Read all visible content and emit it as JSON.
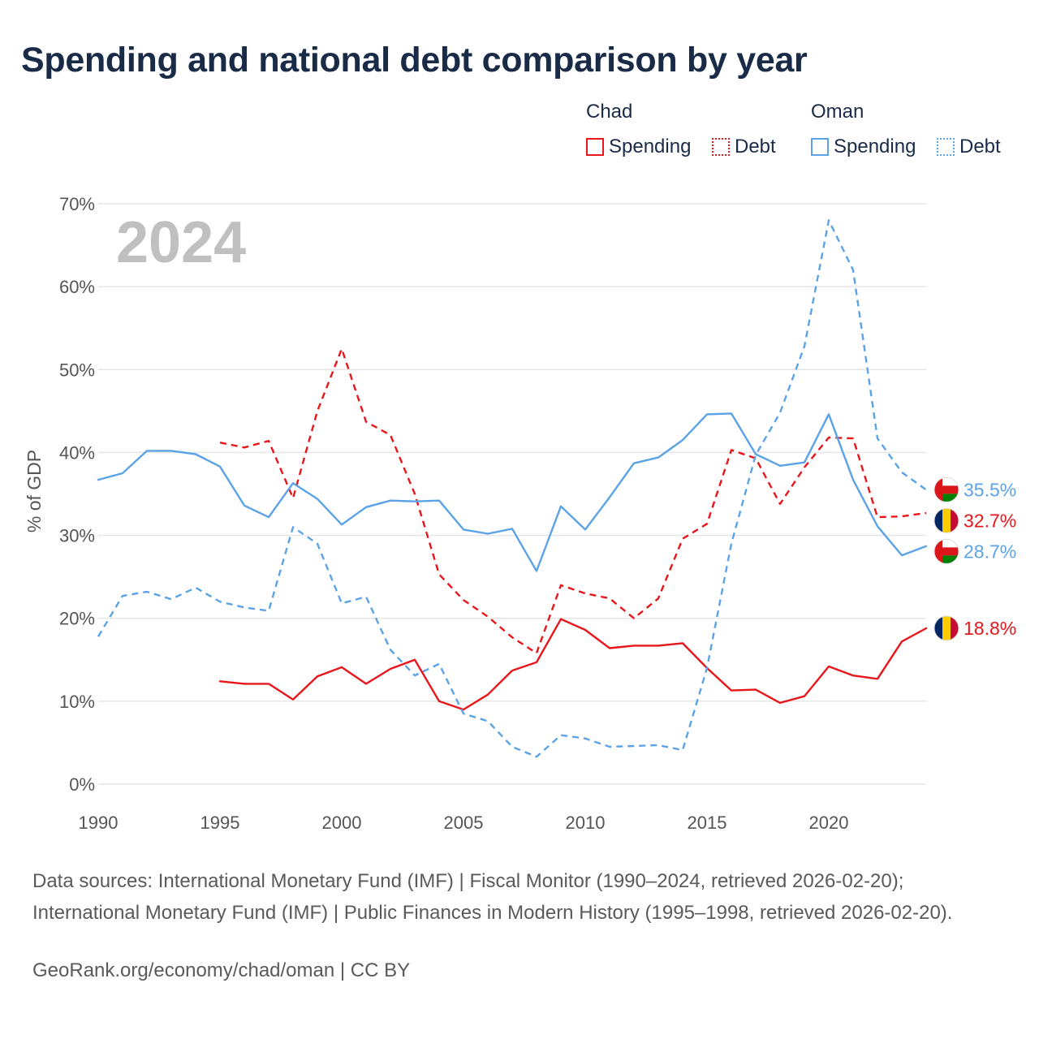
{
  "title": "Spending and national debt comparison by year",
  "legend": {
    "groups": [
      {
        "name": "Chad",
        "items": [
          {
            "label": "Spending"
          },
          {
            "label": "Debt"
          }
        ]
      },
      {
        "name": "Oman",
        "items": [
          {
            "label": "Spending"
          },
          {
            "label": "Debt"
          }
        ]
      }
    ]
  },
  "colors": {
    "chad": "#e8161b",
    "oman": "#5ba3e6",
    "grid": "#e6e6e6",
    "axis_text": "#555555",
    "year_label": "#c0c0c0"
  },
  "sources": {
    "text": "Data sources: International Monetary Fund (IMF) | Fiscal Monitor (1990–2024, retrieved 2026-02-20); International Monetary Fund (IMF) | Public Finances in Modern History (1995–1998, retrieved 2026-02-20).",
    "credit": "GeoRank.org/economy/chad/oman | CC BY"
  },
  "chart_data": {
    "type": "line",
    "year_label": "2024",
    "ylabel": "% of GDP",
    "ylim": [
      0,
      70
    ],
    "yticks": [
      0,
      10,
      20,
      30,
      40,
      50,
      60,
      70
    ],
    "ytick_labels": [
      "0%",
      "10%",
      "20%",
      "30%",
      "40%",
      "50%",
      "60%",
      "70%"
    ],
    "xlim": [
      1990,
      2024
    ],
    "xticks": [
      1990,
      1995,
      2000,
      2005,
      2010,
      2015,
      2020
    ],
    "xtick_labels": [
      "1990",
      "1995",
      "2000",
      "2005",
      "2010",
      "2015",
      "2020"
    ],
    "grid": true,
    "series": [
      {
        "name": "Chad Spending",
        "country": "chad",
        "style": "solid",
        "start_year": 1995,
        "values": [
          12.4,
          12.1,
          12.1,
          10.2,
          13.0,
          14.1,
          12.1,
          13.9,
          15.0,
          10.0,
          9.0,
          10.8,
          13.7,
          14.7,
          19.9,
          18.6,
          16.4,
          16.7,
          16.7,
          17.0,
          14.0,
          11.3,
          11.4,
          9.8,
          10.6,
          14.2,
          13.1,
          12.7,
          17.2,
          18.8
        ],
        "end_label": "18.8%"
      },
      {
        "name": "Chad Debt",
        "country": "chad",
        "style": "dashed",
        "start_year": 1995,
        "values": [
          41.2,
          40.6,
          41.4,
          34.5,
          45.0,
          52.5,
          43.7,
          42.1,
          35.0,
          25.3,
          22.2,
          20.2,
          17.7,
          15.8,
          24.0,
          23.0,
          22.4,
          20.0,
          22.4,
          29.6,
          31.4,
          40.3,
          39.3,
          33.8,
          38.2,
          41.8,
          41.7,
          32.2,
          32.3,
          32.7
        ],
        "end_label": "32.7%"
      },
      {
        "name": "Oman Spending",
        "country": "oman",
        "style": "solid",
        "start_year": 1990,
        "values": [
          36.7,
          37.5,
          40.2,
          40.2,
          39.8,
          38.3,
          33.6,
          32.2,
          36.3,
          34.4,
          31.3,
          33.4,
          34.2,
          34.1,
          34.2,
          30.7,
          30.2,
          30.8,
          25.7,
          33.5,
          30.7,
          34.6,
          38.7,
          39.4,
          41.5,
          44.6,
          44.7,
          39.8,
          38.4,
          38.8,
          44.6,
          36.7,
          31.1,
          27.6,
          28.7
        ],
        "end_label": "28.7%"
      },
      {
        "name": "Oman Debt",
        "country": "oman",
        "style": "dashed",
        "start_year": 1990,
        "values": [
          17.8,
          22.7,
          23.2,
          22.3,
          23.7,
          22.0,
          21.3,
          20.9,
          31.0,
          29.0,
          21.8,
          22.6,
          16.2,
          13.1,
          14.5,
          8.5,
          7.6,
          4.5,
          3.3,
          5.9,
          5.5,
          4.5,
          4.6,
          4.7,
          4.1,
          14.0,
          29.0,
          39.7,
          44.8,
          52.8,
          68.0,
          62.0,
          41.7,
          37.6,
          35.5
        ],
        "end_label": "35.5%"
      }
    ]
  }
}
